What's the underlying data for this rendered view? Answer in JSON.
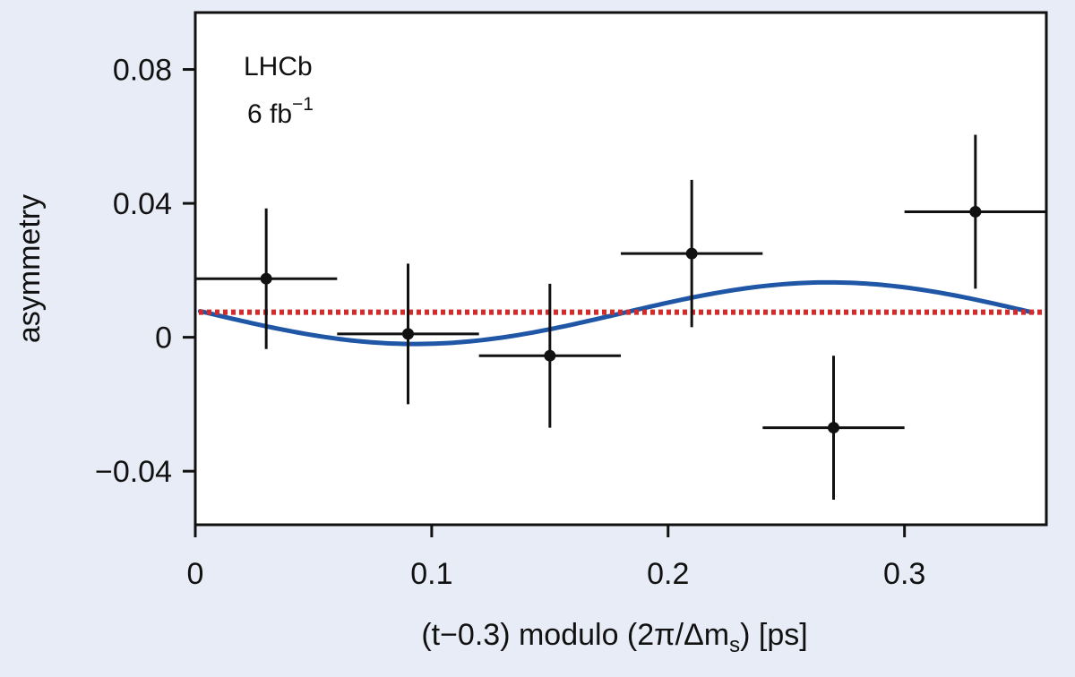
{
  "chart_data": {
    "type": "scatter",
    "xlabel": "(t−0.3) modulo (2π/Δm",
    "xlabel_sub": "s",
    "xlabel_tail": ") [ps]",
    "ylabel": "asymmetry",
    "xlim": [
      0,
      0.36
    ],
    "ylim": [
      -0.056,
      0.097
    ],
    "grid": false,
    "xticks": [
      0,
      0.1,
      0.2,
      0.3
    ],
    "xtick_labels": [
      "0",
      "0.1",
      "0.2",
      "0.3"
    ],
    "yticks": [
      0.08,
      0.04,
      0,
      -0.04
    ],
    "ytick_labels": [
      "0.08",
      "0.04",
      "0",
      "−0.04"
    ],
    "annotation_experiment": "LHCb",
    "annotation_lumi": "6 fb",
    "annotation_lumi_exp": "−1",
    "points": [
      {
        "x": 0.03,
        "xerr": 0.03,
        "y": 0.0175,
        "yerr": 0.021
      },
      {
        "x": 0.09,
        "xerr": 0.03,
        "y": 0.001,
        "yerr": 0.021
      },
      {
        "x": 0.15,
        "xerr": 0.03,
        "y": -0.0055,
        "yerr": 0.0215
      },
      {
        "x": 0.21,
        "xerr": 0.03,
        "y": 0.025,
        "yerr": 0.022
      },
      {
        "x": 0.27,
        "xerr": 0.03,
        "y": -0.027,
        "yerr": 0.0215
      },
      {
        "x": 0.33,
        "xerr": 0.03,
        "y": 0.0375,
        "yerr": 0.023
      }
    ],
    "fit_curve": {
      "color": "#1f57a6",
      "x_range": [
        0.002,
        0.354
      ],
      "offset": 0.0072,
      "amplitude": 0.0092,
      "period": 0.3499,
      "x_peak": 0.268
    },
    "constant_line": {
      "y": 0.0075,
      "color": "#d42a2a",
      "style": "dotted"
    },
    "colors": {
      "points": "#111111",
      "frame": "#111111",
      "plot_bg": "#ffffff",
      "page_bg": "#e8ecf6"
    }
  }
}
